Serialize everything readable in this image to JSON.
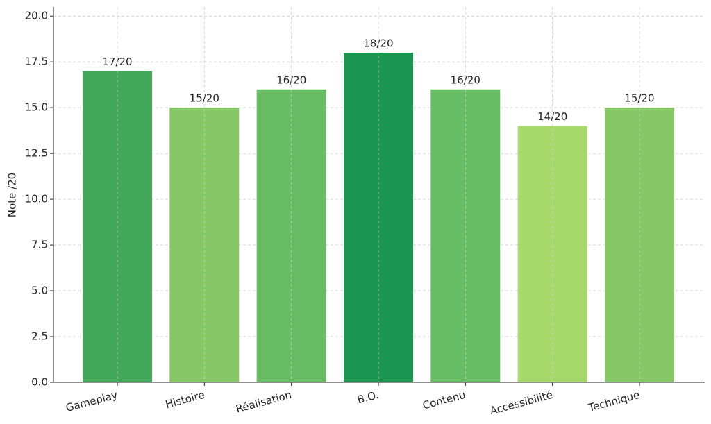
{
  "chart_data": {
    "type": "bar",
    "ylabel": "Note /20",
    "categories": [
      "Gameplay",
      "Histoire",
      "Réalisation",
      "B.O.",
      "Contenu",
      "Accessibilité",
      "Technique"
    ],
    "values": [
      17,
      15,
      16,
      18,
      16,
      14,
      15
    ],
    "value_labels": [
      "17/20",
      "15/20",
      "16/20",
      "18/20",
      "16/20",
      "14/20",
      "15/20"
    ],
    "colors": [
      "#41a85a",
      "#86c766",
      "#66bb63",
      "#1a9650",
      "#66bd63",
      "#a6d96a",
      "#86c766"
    ],
    "ylim": [
      0,
      20.5
    ],
    "yticks": [
      {
        "value": 0,
        "label": "0.0"
      },
      2.5,
      {
        "value": 5,
        "label": "5.0"
      },
      7.5,
      {
        "value": 10,
        "label": "10.0"
      },
      12.5,
      {
        "value": 15,
        "label": "15.0"
      },
      17.5,
      {
        "value": 20,
        "label": "20.0"
      }
    ],
    "grid": true
  }
}
